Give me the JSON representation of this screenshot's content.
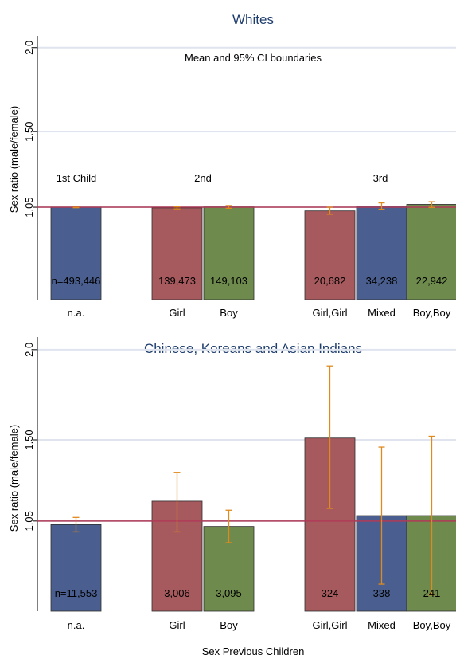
{
  "chart_data": [
    {
      "type": "bar",
      "title": "Whites",
      "subtitle": "Mean and 95% CI boundaries",
      "ylabel": "Sex ratio (male/female)",
      "xlabel": "",
      "yticks": [
        1.05,
        1.5,
        2.0
      ],
      "ytick_labels": [
        "1.05",
        "1.50",
        "2.0"
      ],
      "reference_line": 1.05,
      "group_labels": [
        "1st Child",
        "2nd",
        "3rd"
      ],
      "categories": [
        "n.a.",
        "Girl",
        "Boy",
        "Girl,Girl",
        "Mixed",
        "Boy,Boy"
      ],
      "values": [
        1.051,
        1.046,
        1.052,
        1.028,
        1.057,
        1.067
      ],
      "ci_low": [
        1.047,
        1.04,
        1.044,
        1.008,
        1.038,
        1.049
      ],
      "ci_high": [
        1.055,
        1.052,
        1.06,
        1.05,
        1.076,
        1.083
      ],
      "counts": [
        "n=493,446",
        "139,473",
        "149,103",
        "20,682",
        "34,238",
        "22,942"
      ],
      "bar_colors": [
        "#4a5f8f",
        "#a65a5e",
        "#6e8b4d",
        "#a65a5e",
        "#4a5f8f",
        "#6e8b4d"
      ]
    },
    {
      "type": "bar",
      "title": "Chinese, Koreans and Asian Indians",
      "ylabel": "Sex ratio (male/female)",
      "xlabel": "Sex Previous Children",
      "yticks": [
        1.05,
        1.5,
        2.0
      ],
      "ytick_labels": [
        "1.05",
        "1.50",
        "2.0"
      ],
      "reference_line": 1.05,
      "categories": [
        "n.a.",
        "Girl",
        "Boy",
        "Girl,Girl",
        "Mixed",
        "Boy,Boy"
      ],
      "values": [
        1.03,
        1.16,
        1.02,
        1.51,
        1.08,
        1.08
      ],
      "ci_low": [
        0.99,
        0.99,
        0.93,
        1.12,
        0.7,
        0.64
      ],
      "ci_high": [
        1.07,
        1.32,
        1.11,
        1.91,
        1.46,
        1.52
      ],
      "counts": [
        "n=11,553",
        "3,006",
        "3,095",
        "324",
        "338",
        "241"
      ],
      "bar_colors": [
        "#4a5f8f",
        "#a65a5e",
        "#6e8b4d",
        "#a65a5e",
        "#4a5f8f",
        "#6e8b4d"
      ]
    }
  ],
  "colors": {
    "ref_line": "#b03a57",
    "ci": "#e08a1e",
    "grid": "#dfe4ee",
    "title": "#1f3e6e"
  }
}
